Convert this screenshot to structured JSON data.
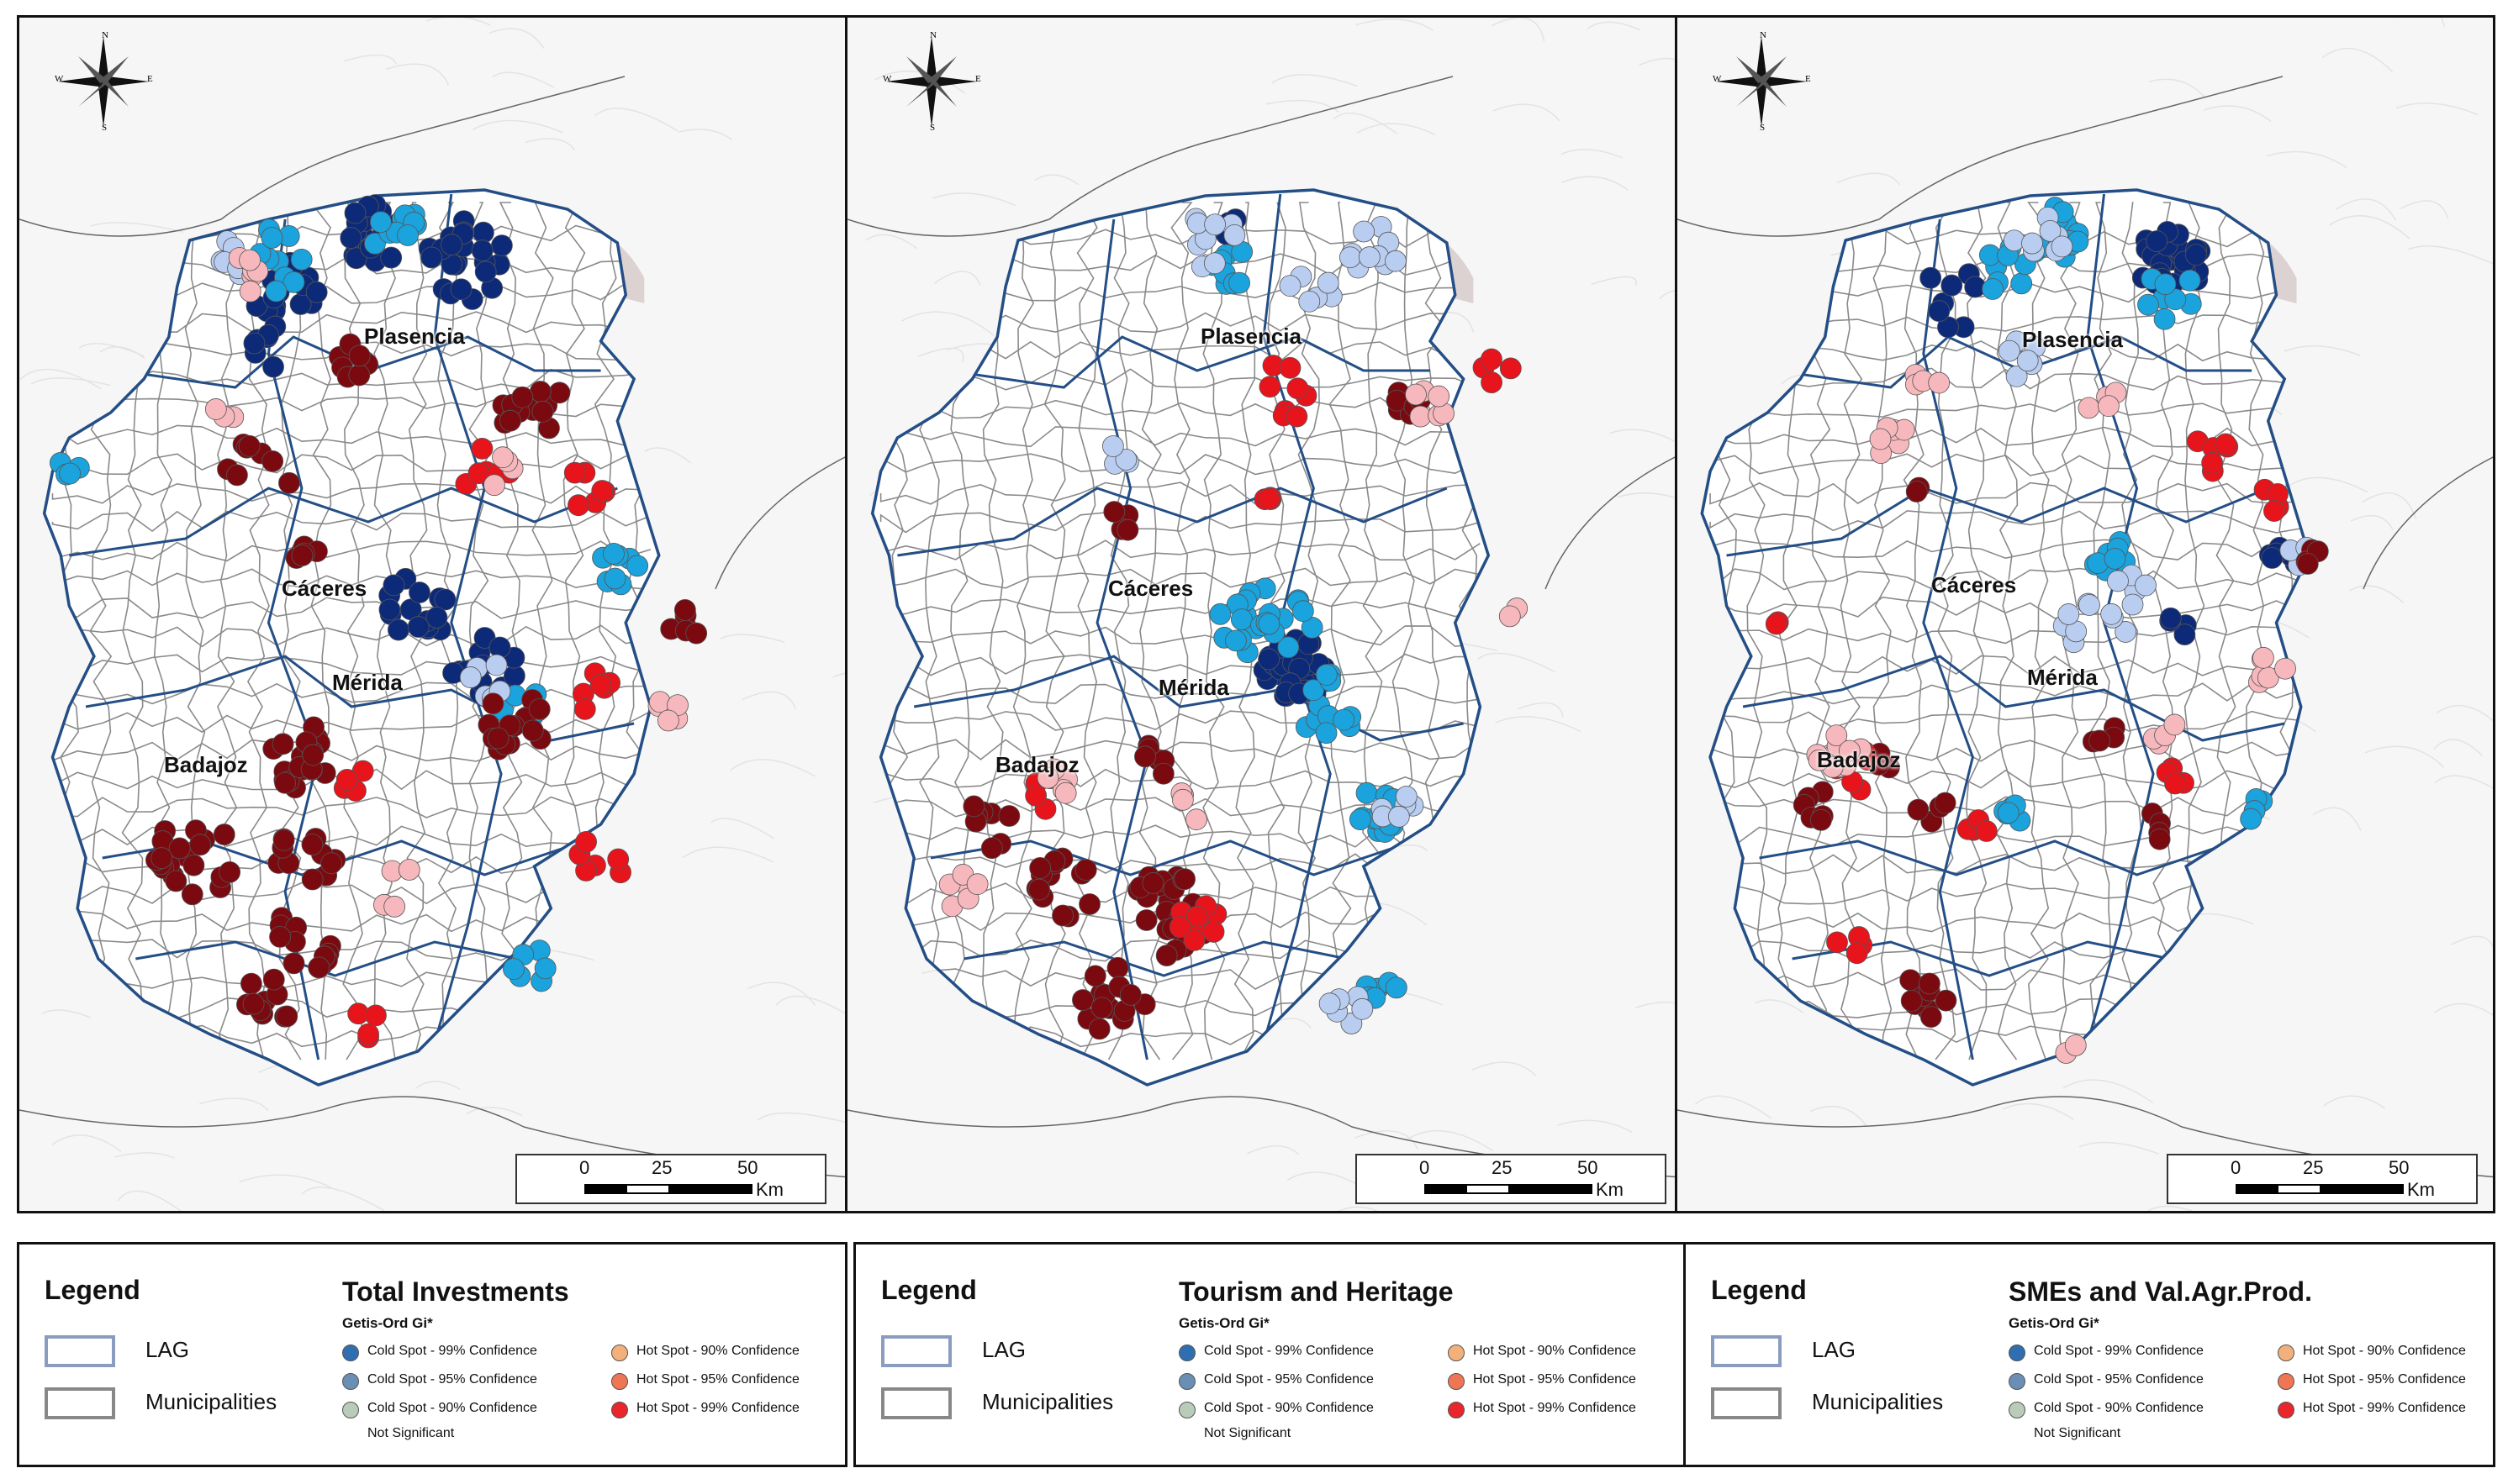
{
  "cities": {
    "plasencia": "Plasencia",
    "caceres": "Cáceres",
    "merida": "Mérida",
    "badajoz": "Badajoz"
  },
  "scalebar": {
    "t0": "0",
    "t25": "25",
    "t50": "50",
    "unit": "Km"
  },
  "compass": {
    "n": "N",
    "s": "S",
    "e": "E",
    "w": "W"
  },
  "legend_common": {
    "heading": "Legend",
    "lag": "LAG",
    "municipalities": "Municipalities",
    "method": "Getis-Ord Gi*",
    "cold99": "Cold Spot - 99% Confidence",
    "cold95": "Cold Spot - 95% Confidence",
    "cold90": "Cold Spot - 90% Confidence",
    "notsig": "Not Significant",
    "hot90": "Hot Spot - 90% Confidence",
    "hot95": "Hot Spot - 95% Confidence",
    "hot99": "Hot Spot - 99% Confidence"
  },
  "panels": [
    {
      "title": "Total Investments"
    },
    {
      "title": "Tourism and Heritage"
    },
    {
      "title": "SMEs and Val.Agr.Prod."
    }
  ],
  "colors": {
    "cold99": "#0d2a78",
    "cold95": "#1aa3dc",
    "cold90": "#b9cdf0",
    "hot90": "#f6b8bc",
    "hot95": "#e8141c",
    "hot99": "#7a0a10",
    "lag": "#244e86",
    "municipality": "#8a8a8a",
    "legend_cold99": "#2f6fb1",
    "legend_cold95": "#6a8fb4",
    "legend_cold90": "#b9cbb9",
    "legend_hot90": "#f3b07a",
    "legend_hot95": "#ef7655",
    "legend_hot99": "#e8262c"
  }
}
